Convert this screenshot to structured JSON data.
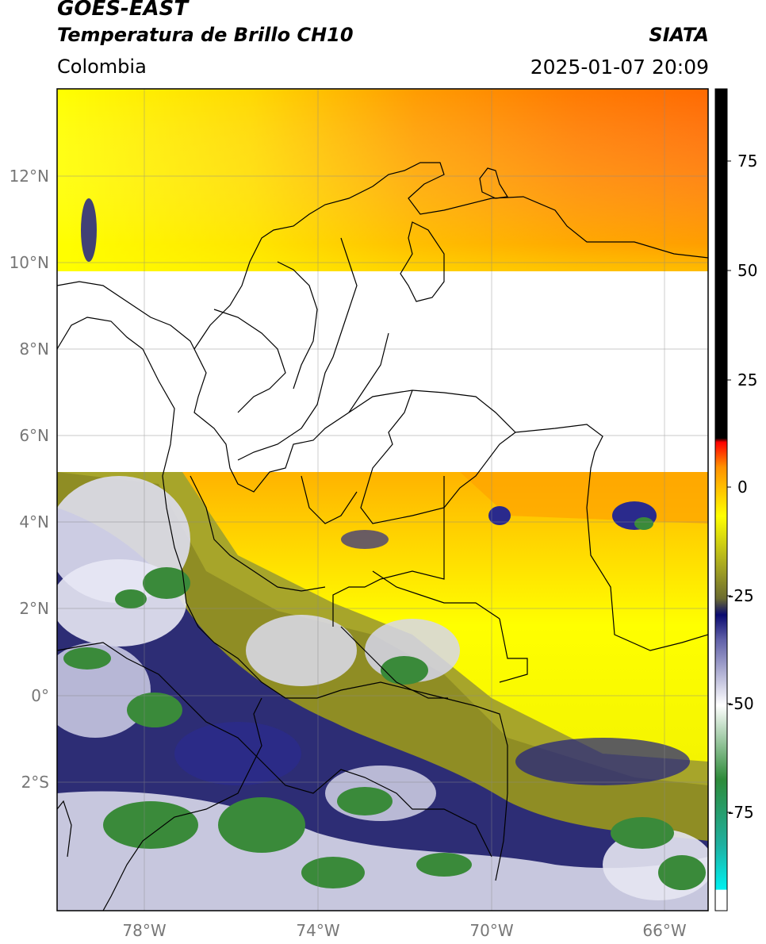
{
  "header": {
    "satellite": "GOES-EAST",
    "product": "Temperatura de Brillo CH10",
    "institution": "SIATA",
    "region": "Colombia",
    "datetime": "2025-01-07 20:09"
  },
  "map": {
    "lon_range": [
      -80,
      -65
    ],
    "lat_range": [
      -5.2,
      14
    ],
    "lat_tick_labels": [
      "12°N",
      "10°N",
      "8°N",
      "6°N",
      "4°N",
      "2°N",
      "0°",
      "2°S"
    ],
    "lon_tick_labels": [
      "78°W",
      "74°W",
      "70°W",
      "66°W"
    ],
    "missing_data_band_lat": [
      5.2,
      9.8
    ]
  },
  "colorbar": {
    "range": [
      -95,
      90
    ],
    "tick_labels": [
      "75",
      "50",
      "25",
      "0",
      "-25",
      "-50",
      "-75"
    ],
    "colors": {
      "warm": "#ff0000",
      "orange": "#ff8c00",
      "yellow": "#ffff00",
      "olive": "#8c8c1e",
      "navy": "#1a1a80",
      "white": "#ffffff",
      "green": "#2e8b3a",
      "cyan": "#00e0e0",
      "black": "#000000"
    }
  }
}
